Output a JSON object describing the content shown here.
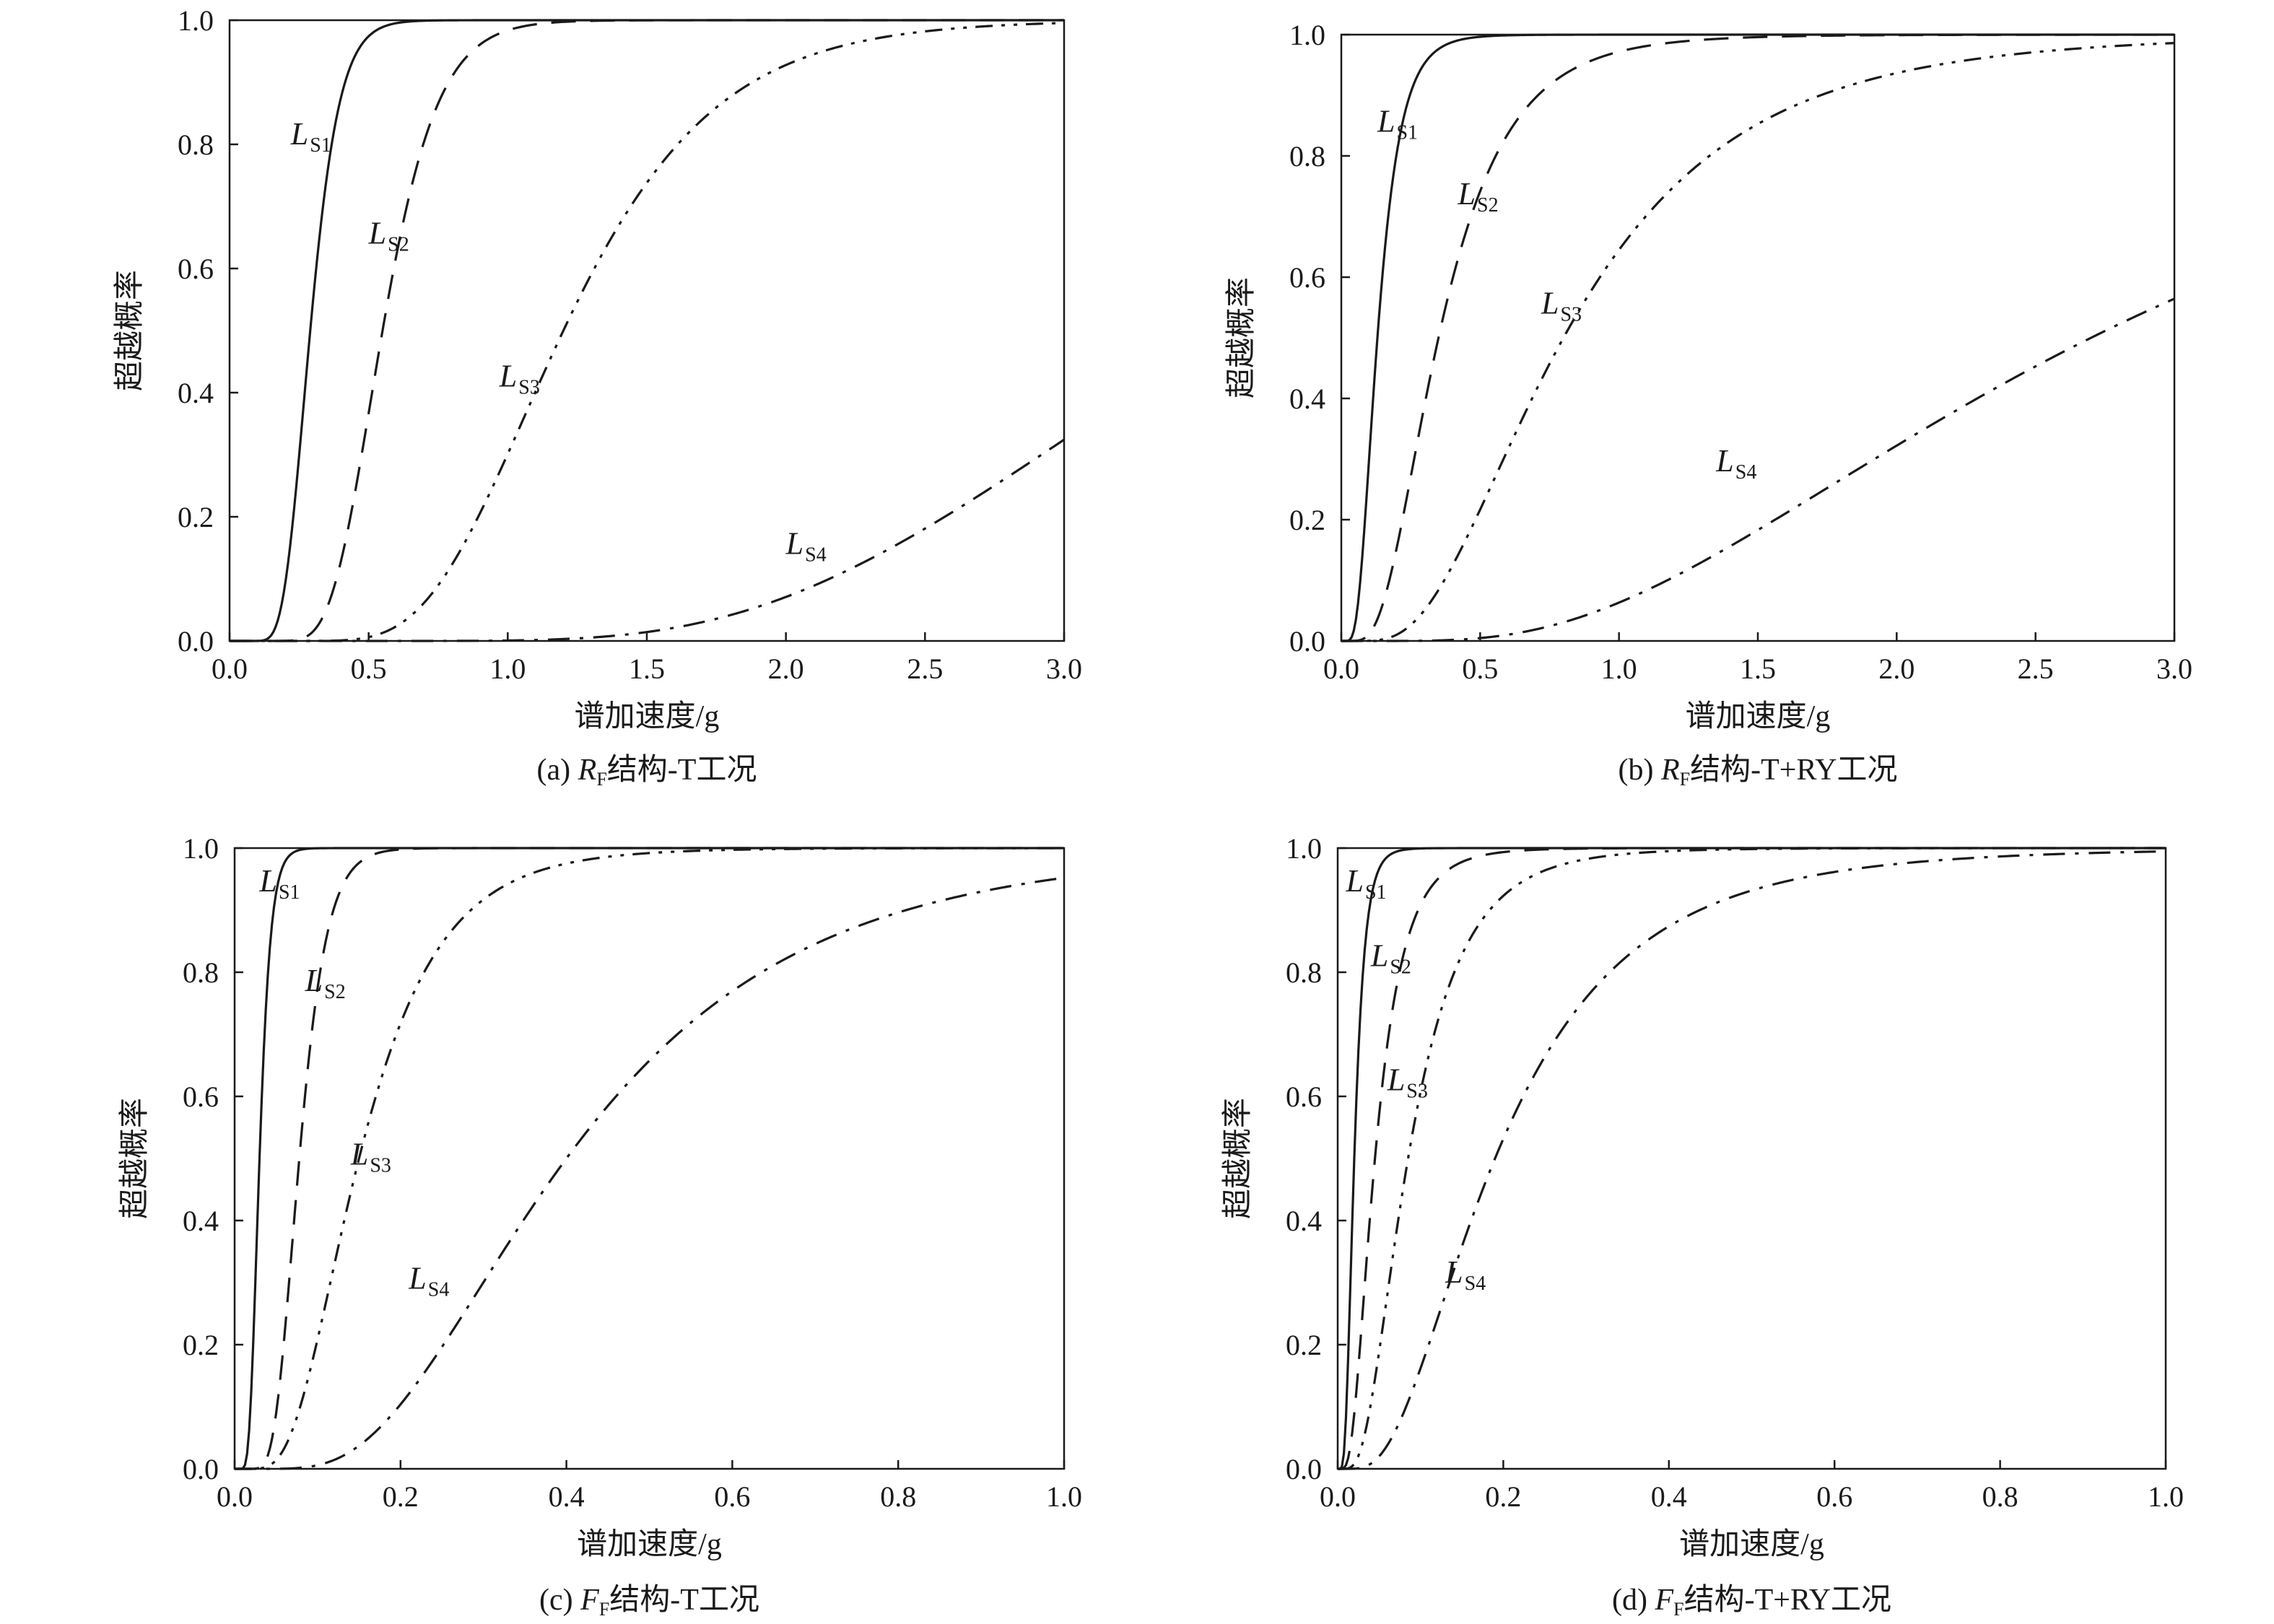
{
  "chart_data": [
    {
      "id": "a",
      "type": "line",
      "caption": {
        "prefix": "(a) ",
        "var": "R",
        "sub": "F",
        "suffix": "结构-T工况"
      },
      "xlabel": "谱加速度/g",
      "ylabel": "超越概率",
      "xlim": [
        0,
        3.0
      ],
      "ylim": [
        0,
        1.0
      ],
      "xticks": [
        "0.0",
        "0.5",
        "1.0",
        "1.5",
        "2.0",
        "2.5",
        "3.0"
      ],
      "yticks": [
        "0.0",
        "0.2",
        "0.4",
        "0.6",
        "0.8",
        "1.0"
      ],
      "grid": false,
      "series": [
        {
          "name": "LS1",
          "label_main": "L",
          "label_sub": "S1",
          "style": "solid",
          "median": 0.29,
          "beta": 0.28,
          "label_at": [
            0.22,
            0.8
          ]
        },
        {
          "name": "LS2",
          "label_main": "L",
          "label_sub": "S2",
          "style": "dash",
          "median": 0.55,
          "beta": 0.28,
          "label_at": [
            0.5,
            0.64
          ]
        },
        {
          "name": "LS3",
          "label_main": "L",
          "label_sub": "S3",
          "style": "dashdotdot",
          "median": 1.2,
          "beta": 0.35,
          "label_at": [
            0.97,
            0.41
          ]
        },
        {
          "name": "LS4",
          "label_main": "L",
          "label_sub": "S4",
          "style": "dashdot",
          "median": 3.6,
          "beta": 0.4,
          "label_at": [
            2.0,
            0.14
          ]
        }
      ]
    },
    {
      "id": "b",
      "type": "line",
      "caption": {
        "prefix": "(b) ",
        "var": "R",
        "sub": "F",
        "suffix": "结构-T+RY工况"
      },
      "xlabel": "谱加速度/g",
      "ylabel": "超越概率",
      "xlim": [
        0,
        3.0
      ],
      "ylim": [
        0,
        1.0
      ],
      "xticks": [
        "0.0",
        "0.5",
        "1.0",
        "1.5",
        "2.0",
        "2.5",
        "3.0"
      ],
      "yticks": [
        "0.0",
        "0.2",
        "0.4",
        "0.6",
        "0.8",
        "1.0"
      ],
      "grid": false,
      "series": [
        {
          "name": "LS1",
          "label_main": "L",
          "label_sub": "S1",
          "style": "solid",
          "median": 0.13,
          "beta": 0.5,
          "label_at": [
            0.13,
            0.84
          ]
        },
        {
          "name": "LS2",
          "label_main": "L",
          "label_sub": "S2",
          "style": "dash",
          "median": 0.35,
          "beta": 0.55,
          "label_at": [
            0.42,
            0.72
          ]
        },
        {
          "name": "LS3",
          "label_main": "L",
          "label_sub": "S3",
          "style": "dashdotdot",
          "median": 0.8,
          "beta": 0.6,
          "label_at": [
            0.72,
            0.54
          ]
        },
        {
          "name": "LS4",
          "label_main": "L",
          "label_sub": "S4",
          "style": "dashdot",
          "median": 2.7,
          "beta": 0.65,
          "label_at": [
            1.35,
            0.28
          ]
        }
      ]
    },
    {
      "id": "c",
      "type": "line",
      "caption": {
        "prefix": "(c) ",
        "var": "F",
        "sub": "F",
        "suffix": "结构-T工况"
      },
      "xlabel": "谱加速度/g",
      "ylabel": "超越概率",
      "xlim": [
        0,
        1.0
      ],
      "ylim": [
        0,
        1.0
      ],
      "xticks": [
        "0.0",
        "0.2",
        "0.4",
        "0.6",
        "0.8",
        "1.0"
      ],
      "yticks": [
        "0.0",
        "0.2",
        "0.4",
        "0.6",
        "0.8",
        "1.0"
      ],
      "grid": false,
      "series": [
        {
          "name": "LS1",
          "label_main": "L",
          "label_sub": "S1",
          "style": "solid",
          "median": 0.03,
          "beta": 0.35,
          "label_at": [
            0.03,
            0.93
          ]
        },
        {
          "name": "LS2",
          "label_main": "L",
          "label_sub": "S2",
          "style": "dash",
          "median": 0.078,
          "beta": 0.33,
          "label_at": [
            0.085,
            0.77
          ]
        },
        {
          "name": "LS3",
          "label_main": "L",
          "label_sub": "S3",
          "style": "dashdotdot",
          "median": 0.15,
          "beta": 0.5,
          "label_at": [
            0.14,
            0.49
          ]
        },
        {
          "name": "LS4",
          "label_main": "L",
          "label_sub": "S4",
          "style": "dashdot",
          "median": 0.4,
          "beta": 0.55,
          "label_at": [
            0.21,
            0.29
          ]
        }
      ]
    },
    {
      "id": "d",
      "type": "line",
      "caption": {
        "prefix": "(d) ",
        "var": "F",
        "sub": "F",
        "suffix": "结构-T+RY工况"
      },
      "xlabel": "谱加速度/g",
      "ylabel": "超越概率",
      "xlim": [
        0,
        1.0
      ],
      "ylim": [
        0,
        1.0
      ],
      "xticks": [
        "0.0",
        "0.2",
        "0.4",
        "0.6",
        "0.8",
        "1.0"
      ],
      "yticks": [
        "0.0",
        "0.2",
        "0.4",
        "0.6",
        "0.8",
        "1.0"
      ],
      "grid": false,
      "series": [
        {
          "name": "LS1",
          "label_main": "L",
          "label_sub": "S1",
          "style": "solid",
          "median": 0.02,
          "beta": 0.5,
          "label_at": [
            0.01,
            0.93
          ]
        },
        {
          "name": "LS2",
          "label_main": "L",
          "label_sub": "S2",
          "style": "dash",
          "median": 0.045,
          "beta": 0.6,
          "label_at": [
            0.04,
            0.81
          ]
        },
        {
          "name": "LS3",
          "label_main": "L",
          "label_sub": "S3",
          "style": "dashdotdot",
          "median": 0.085,
          "beta": 0.6,
          "label_at": [
            0.06,
            0.61
          ]
        },
        {
          "name": "LS4",
          "label_main": "L",
          "label_sub": "S4",
          "style": "dashdot",
          "median": 0.19,
          "beta": 0.65,
          "label_at": [
            0.13,
            0.3
          ]
        }
      ]
    }
  ]
}
